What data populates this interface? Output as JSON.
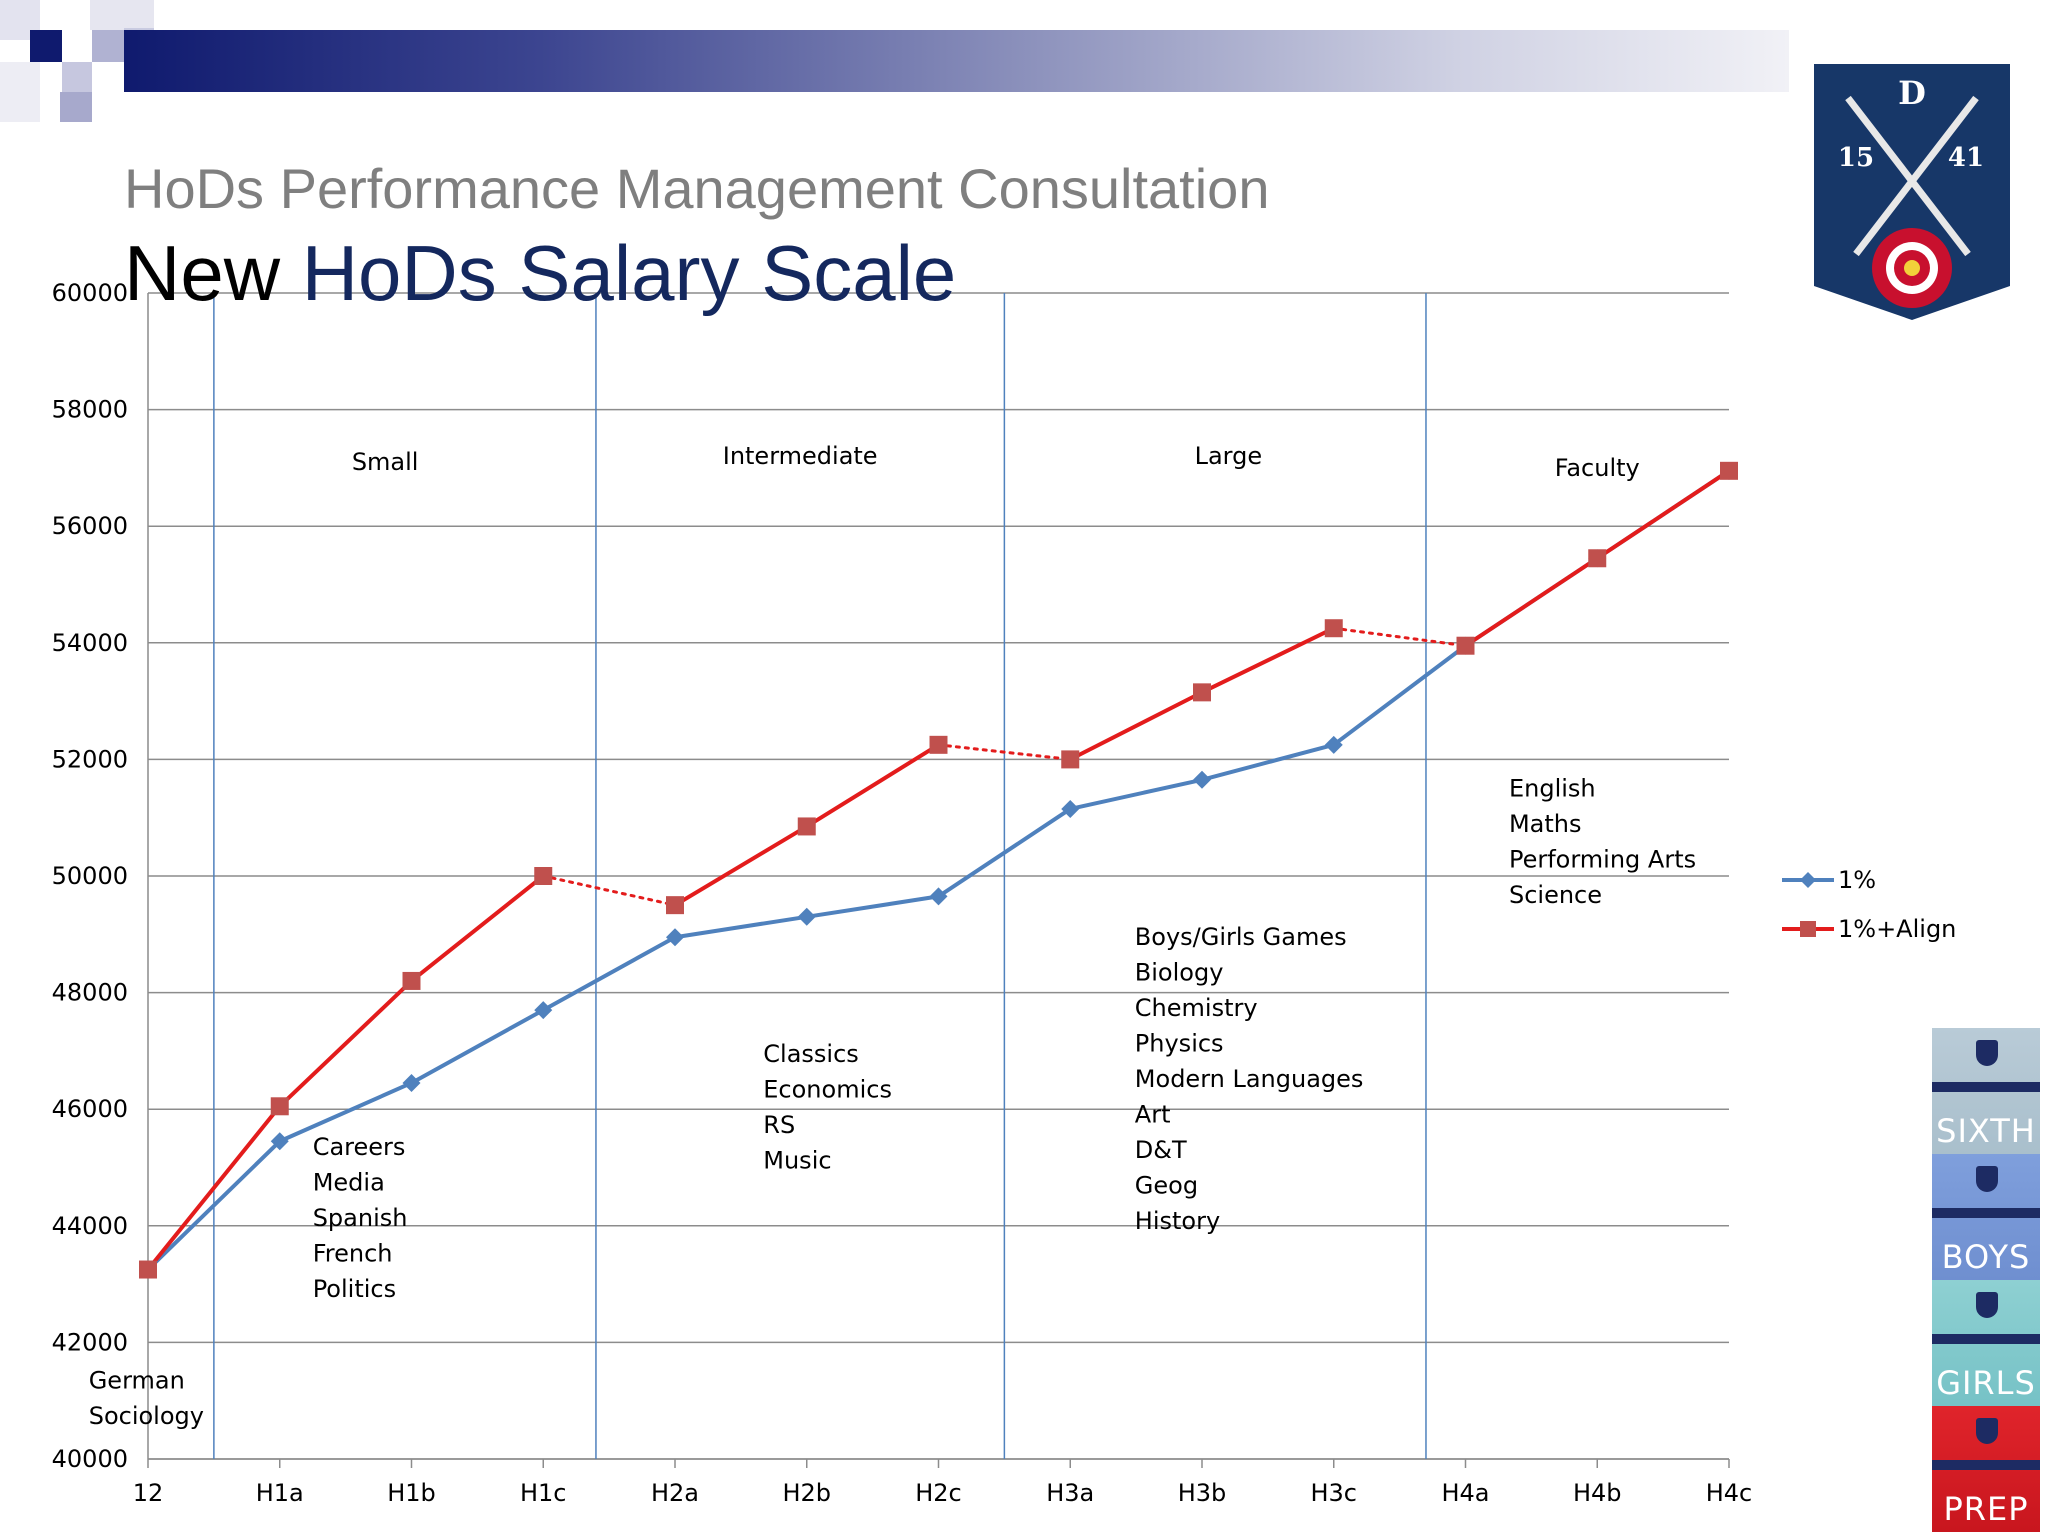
{
  "slide": {
    "subtitle": "HoDs Performance Management Consultation",
    "title_part1": "New ",
    "title_part2": "HoDs Salary Scale",
    "crest": {
      "letter": "D",
      "left_num": "15",
      "right_num": "41"
    },
    "schools": [
      "SIXTH",
      "BOYS",
      "GIRLS",
      "PREP"
    ]
  },
  "chart_data": {
    "type": "line",
    "categories": [
      "12",
      "H1a",
      "H1b",
      "H1c",
      "H2a",
      "H2b",
      "H2c",
      "H3a",
      "H3b",
      "H3c",
      "H4a",
      "H4b",
      "H4c"
    ],
    "ylim": [
      40000,
      60000
    ],
    "yticks": [
      40000,
      42000,
      44000,
      46000,
      48000,
      50000,
      52000,
      54000,
      56000,
      58000,
      60000
    ],
    "grid": true,
    "legend_position": "right",
    "series": [
      {
        "name": "1%",
        "color": "#4f81bd",
        "marker": "diamond",
        "values": [
          43250,
          45450,
          46450,
          47700,
          48950,
          49300,
          49650,
          51150,
          51650,
          52250,
          53950,
          55450,
          56950
        ]
      },
      {
        "name": "1%+Align",
        "color": "#e31c1c",
        "marker_color": "#c0504d",
        "marker": "square",
        "values": [
          43250,
          46050,
          48200,
          50000,
          49500,
          50850,
          52250,
          52000,
          53150,
          54250,
          53950,
          55450,
          56950
        ],
        "dotted_segments": [
          [
            3,
            4
          ],
          [
            6,
            7
          ],
          [
            9,
            10
          ]
        ]
      }
    ],
    "band_dividers": [
      0.5,
      3.4,
      6.5,
      9.7
    ],
    "band_labels": [
      {
        "text": "Small",
        "x": 1.8,
        "y": 57100
      },
      {
        "text": "Intermediate",
        "x": 4.95,
        "y": 57200
      },
      {
        "text": "Large",
        "x": 8.2,
        "y": 57200
      },
      {
        "text": "Faculty",
        "x": 11.0,
        "y": 57000
      }
    ],
    "annotations": [
      {
        "x": -0.45,
        "y": 41350,
        "lines": [
          "German",
          "Sociology"
        ]
      },
      {
        "x": 1.25,
        "y": 45350,
        "lines": [
          "Careers",
          "Media",
          "Spanish",
          "French",
          "Politics"
        ]
      },
      {
        "x": 4.67,
        "y": 46950,
        "lines": [
          "Classics",
          "Economics",
          "RS",
          "Music"
        ]
      },
      {
        "x": 7.49,
        "y": 48950,
        "lines": [
          "Boys/Girls Games",
          "Biology",
          "Chemistry",
          "Physics",
          "Modern Languages",
          "Art",
          "D&T",
          "Geog",
          "History"
        ]
      },
      {
        "x": 10.33,
        "y": 51500,
        "lines": [
          "English",
          "Maths",
          "Performing Arts",
          "Science"
        ]
      }
    ]
  }
}
